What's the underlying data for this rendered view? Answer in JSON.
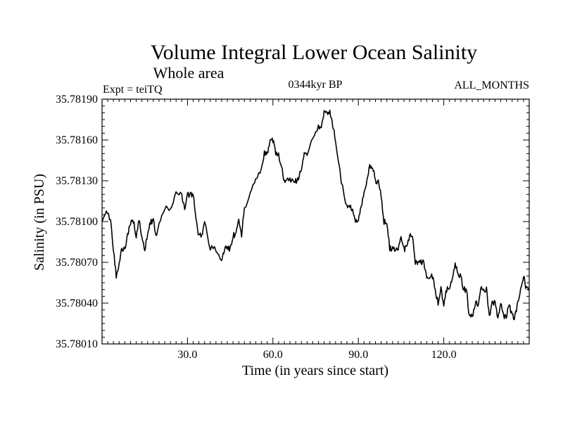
{
  "chart_data": {
    "type": "line",
    "title": "Volume Integral Lower Ocean Salinity",
    "subtitle": "Whole area",
    "left_label": "Expt = teiTQ",
    "center_label": "0344kyr BP",
    "right_label": "ALL_MONTHS",
    "xlabel": "Time (in years since start)",
    "ylabel": "Salinity (in PSU)",
    "xlim": [
      0,
      150
    ],
    "ylim": [
      35.7801,
      35.7819
    ],
    "x_ticks": [
      30,
      60,
      90,
      120
    ],
    "x_tick_labels": [
      "30.0",
      "60.0",
      "90.0",
      "120.0"
    ],
    "y_ticks": [
      35.7801,
      35.7804,
      35.7807,
      35.781,
      35.7813,
      35.7816,
      35.7819
    ],
    "y_tick_labels": [
      "35.78010",
      "35.78040",
      "35.78070",
      "35.78100",
      "35.78130",
      "35.78160",
      "35.78190"
    ],
    "series": [
      {
        "name": "Salinity",
        "color": "#000000",
        "anchors_x": [
          0,
          1.5,
          3,
          4,
          5,
          6,
          7,
          8,
          9,
          10,
          11,
          12,
          13,
          14,
          15,
          16,
          17,
          18,
          19,
          20,
          22,
          24,
          26,
          28,
          29,
          30,
          31,
          32,
          33,
          34,
          35,
          36,
          38,
          40,
          42,
          43,
          44,
          45,
          46,
          47,
          48,
          49,
          50,
          52,
          54,
          56,
          57,
          58,
          59,
          60,
          61,
          62,
          63,
          64,
          65,
          66,
          67,
          68,
          69,
          70,
          71,
          72,
          74,
          76,
          77,
          78,
          79,
          80,
          81,
          82,
          84,
          86,
          87,
          88,
          89,
          90,
          91,
          92,
          93,
          94,
          95,
          96,
          97,
          98,
          99,
          100,
          101,
          102,
          103,
          104,
          105,
          106,
          107,
          108,
          109,
          110,
          111,
          112,
          113,
          114,
          115,
          116,
          117,
          118,
          119,
          120,
          121,
          122,
          123,
          124,
          125,
          126,
          127,
          128,
          129,
          130,
          131,
          132,
          133,
          134,
          135,
          136,
          137,
          138,
          139,
          140,
          141,
          142,
          143,
          144,
          145,
          146,
          147,
          148,
          149,
          150
        ],
        "anchors_y": [
          35.781,
          35.7811,
          35.781,
          35.7808,
          35.7806,
          35.7807,
          35.7808,
          35.7808,
          35.7809,
          35.781,
          35.781,
          35.7809,
          35.781,
          35.7809,
          35.7808,
          35.7809,
          35.781,
          35.781,
          35.7809,
          35.781,
          35.7811,
          35.7811,
          35.7812,
          35.7812,
          35.7811,
          35.7812,
          35.7812,
          35.7812,
          35.781,
          35.7809,
          35.7809,
          35.781,
          35.7808,
          35.7808,
          35.7807,
          35.7808,
          35.7808,
          35.7808,
          35.7809,
          35.7809,
          35.781,
          35.7809,
          35.7811,
          35.7812,
          35.7813,
          35.7814,
          35.7815,
          35.7815,
          35.7816,
          35.7816,
          35.7815,
          35.7815,
          35.7814,
          35.7813,
          35.7813,
          35.7813,
          35.7813,
          35.7813,
          35.7813,
          35.7814,
          35.7815,
          35.7815,
          35.7816,
          35.7817,
          35.7817,
          35.7818,
          35.7818,
          35.7818,
          35.7817,
          35.7816,
          35.7813,
          35.7811,
          35.7811,
          35.7811,
          35.781,
          35.781,
          35.7811,
          35.7812,
          35.7813,
          35.7814,
          35.7814,
          35.7813,
          35.7813,
          35.7812,
          35.781,
          35.781,
          35.7808,
          35.7808,
          35.7808,
          35.7808,
          35.7809,
          35.7808,
          35.7808,
          35.7809,
          35.7809,
          35.7807,
          35.7807,
          35.7807,
          35.7807,
          35.7806,
          35.7806,
          35.7806,
          35.7805,
          35.7804,
          35.7805,
          35.7804,
          35.7805,
          35.7805,
          35.7806,
          35.7807,
          35.7806,
          35.7806,
          35.7805,
          35.7805,
          35.7803,
          35.7803,
          35.7804,
          35.7804,
          35.7805,
          35.7805,
          35.7805,
          35.7803,
          35.7804,
          35.7804,
          35.7803,
          35.7804,
          35.7803,
          35.7803,
          35.7804,
          35.7803,
          35.7803,
          35.7804,
          35.7805,
          35.7806,
          35.7805,
          35.7805
        ]
      }
    ]
  }
}
